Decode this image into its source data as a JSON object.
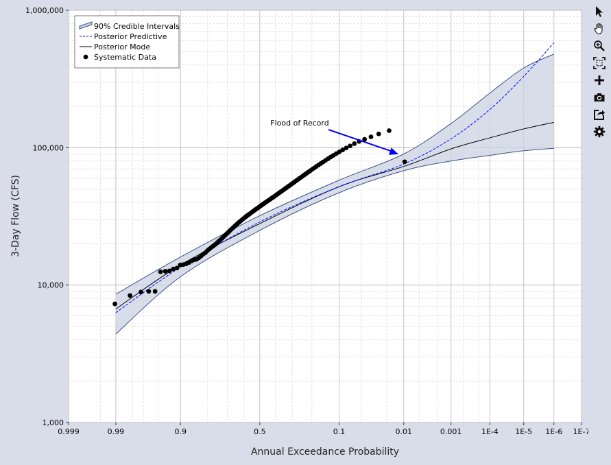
{
  "chart_data": {
    "type": "line",
    "xlabel": "Annual Exceedance Probability",
    "ylabel": "3-Day Flow (CFS)",
    "x_scale": "normal-probability (exceedance, decreasing)",
    "y_scale": "log",
    "xlim": [
      0.999,
      1e-07
    ],
    "ylim": [
      1000,
      1000000
    ],
    "x_ticks": [
      0.999,
      0.99,
      0.9,
      0.5,
      0.1,
      0.01,
      0.001,
      0.0001,
      1e-05,
      1e-06,
      1e-07
    ],
    "x_tick_labels": [
      "0.999",
      "0.99",
      "0.9",
      "0.5",
      "0.1",
      "0.01",
      "0.001",
      "1E-4",
      "1E-5",
      "1E-6",
      "1E-7"
    ],
    "y_ticks": [
      1000,
      10000,
      100000,
      1000000
    ],
    "y_tick_labels": [
      "1,000",
      "10,000",
      "100,000",
      "1,000,000"
    ],
    "grid": true,
    "legend_position": "top-left",
    "legend": [
      {
        "label": "90% Credible Intervals",
        "style": "band"
      },
      {
        "label": "Posterior Predictive",
        "style": "dashed-line"
      },
      {
        "label": "Posterior Mode",
        "style": "line"
      },
      {
        "label": "Systematic Data",
        "style": "marker"
      }
    ],
    "series": [
      {
        "name": "90% Credible Intervals",
        "kind": "band",
        "x": [
          0.99,
          0.9,
          0.5,
          0.1,
          0.01,
          0.001,
          0.0001,
          1e-05,
          1e-06
        ],
        "lower": [
          4400,
          11500,
          25000,
          47000,
          68000,
          80000,
          88000,
          95000,
          99000
        ],
        "upper": [
          8600,
          16000,
          32000,
          58000,
          90000,
          150000,
          250000,
          380000,
          480000
        ]
      },
      {
        "name": "Posterior Predictive",
        "kind": "dashed-line",
        "x": [
          0.99,
          0.9,
          0.5,
          0.1,
          0.01,
          0.001,
          0.0001,
          1e-05,
          1e-06
        ],
        "y": [
          6300,
          13500,
          28800,
          52000,
          76000,
          116000,
          190000,
          330000,
          580000
        ]
      },
      {
        "name": "Posterior Mode",
        "kind": "line",
        "x": [
          0.99,
          0.9,
          0.5,
          0.1,
          0.01,
          0.001,
          0.0001,
          1e-05,
          1e-06
        ],
        "y": [
          6700,
          14000,
          28000,
          52000,
          73000,
          98000,
          118000,
          137000,
          153000
        ]
      },
      {
        "name": "Systematic Data",
        "kind": "scatter",
        "x": [
          0.9904,
          0.982,
          0.9726,
          0.9637,
          0.9547,
          0.9457,
          0.9367,
          0.9277,
          0.9187,
          0.9097,
          0.9007,
          0.8917,
          0.8827,
          0.8736,
          0.8646,
          0.8556,
          0.8466,
          0.8376,
          0.8286,
          0.8196,
          0.8106,
          0.8016,
          0.7926,
          0.7836,
          0.7746,
          0.7656,
          0.7566,
          0.7476,
          0.7386,
          0.7296,
          0.7206,
          0.7116,
          0.7026,
          0.6935,
          0.6845,
          0.6755,
          0.6665,
          0.6575,
          0.6485,
          0.6395,
          0.6305,
          0.6215,
          0.6125,
          0.6035,
          0.5945,
          0.5855,
          0.5765,
          0.5675,
          0.5585,
          0.5495,
          0.5405,
          0.5315,
          0.5225,
          0.5135,
          0.5044,
          0.4954,
          0.4864,
          0.4774,
          0.4684,
          0.4594,
          0.4504,
          0.4414,
          0.4324,
          0.4234,
          0.4144,
          0.4054,
          0.3964,
          0.3874,
          0.3784,
          0.3694,
          0.3604,
          0.3514,
          0.3424,
          0.3334,
          0.3243,
          0.3153,
          0.3063,
          0.2973,
          0.2883,
          0.2793,
          0.2703,
          0.2613,
          0.2523,
          0.2433,
          0.2343,
          0.2253,
          0.2163,
          0.2073,
          0.1983,
          0.1893,
          0.1803,
          0.1713,
          0.1623,
          0.1533,
          0.1442,
          0.1352,
          0.1262,
          0.1172,
          0.1082,
          0.0992,
          0.0902,
          0.0812,
          0.0722,
          0.0632,
          0.0542,
          0.0452,
          0.0362,
          0.0273,
          0.0183,
          0.0096
        ],
        "y": [
          7300,
          8400,
          8900,
          9000,
          9000,
          12500,
          12600,
          12700,
          13100,
          13300,
          14000,
          14100,
          14300,
          14600,
          15000,
          15300,
          15400,
          15800,
          16300,
          16800,
          17200,
          17800,
          18300,
          18800,
          19200,
          19700,
          20200,
          20800,
          21300,
          21900,
          22500,
          23100,
          23700,
          24300,
          25000,
          25600,
          26200,
          26800,
          27500,
          28100,
          28700,
          29300,
          29900,
          30500,
          31100,
          31700,
          32300,
          32800,
          33400,
          34000,
          34600,
          35200,
          35800,
          36400,
          37000,
          37700,
          38300,
          38900,
          39600,
          40200,
          40900,
          41500,
          42200,
          42900,
          43600,
          44300,
          45100,
          45900,
          46700,
          47600,
          48400,
          49300,
          50200,
          51100,
          52100,
          53000,
          54100,
          55100,
          56200,
          57300,
          58500,
          59700,
          60900,
          62200,
          63600,
          65000,
          66500,
          68000,
          69600,
          71200,
          73000,
          74800,
          76700,
          78700,
          80800,
          83000,
          85400,
          87900,
          90500,
          93300,
          96300,
          99500,
          103000,
          107000,
          111000,
          115000,
          120000,
          126000,
          133000,
          79000
        ]
      }
    ],
    "annotations": [
      {
        "text": "Flood of Record",
        "points_to": {
          "x": 0.0096,
          "y": 79000
        },
        "color": "#0000ff"
      }
    ],
    "colors": {
      "band_fill": "#c9d3e2",
      "band_edge": "#3d4f88",
      "predictive": "#0000ff",
      "mode": "#000000",
      "data": "#000000",
      "arrow": "#0000ff"
    }
  },
  "toolbar": {
    "tools": [
      {
        "name": "pointer-icon",
        "active": true
      },
      {
        "name": "pan-hand-icon",
        "active": false
      },
      {
        "name": "zoom-in-icon",
        "active": false
      },
      {
        "name": "zoom-extents-icon",
        "active": false
      },
      {
        "name": "crosshair-plus-icon",
        "active": false
      },
      {
        "name": "camera-icon",
        "active": false
      },
      {
        "name": "export-icon",
        "active": false
      },
      {
        "name": "settings-gear-icon",
        "active": false
      }
    ]
  }
}
